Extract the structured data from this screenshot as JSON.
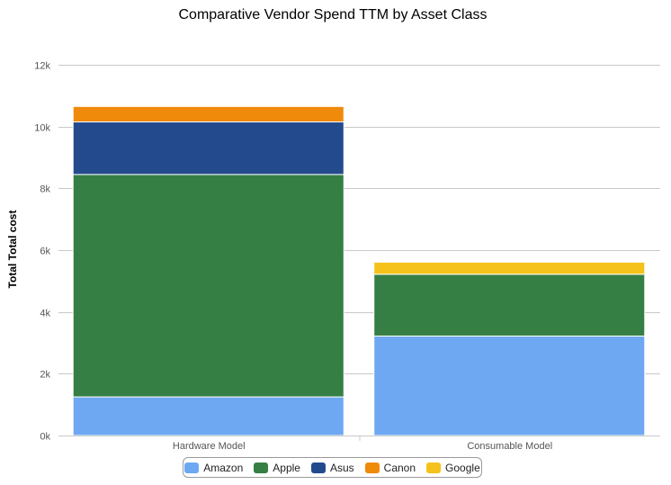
{
  "chart_data": {
    "type": "bar",
    "stacked": true,
    "title": "Comparative Vendor Spend TTM by Asset Class",
    "xlabel": "",
    "ylabel": "Total Total cost",
    "ylim": [
      0,
      12000
    ],
    "yticks": [
      0,
      2000,
      4000,
      6000,
      8000,
      10000,
      12000
    ],
    "ytick_labels": [
      "0k",
      "2k",
      "4k",
      "6k",
      "8k",
      "10k",
      "12k"
    ],
    "grid": true,
    "legend": "bottom-center",
    "categories": [
      "Hardware Model",
      "Consumable Model"
    ],
    "series": [
      {
        "name": "Amazon",
        "color": "#6ea8f2",
        "values": [
          1250,
          3220
        ]
      },
      {
        "name": "Apple",
        "color": "#357f45",
        "values": [
          7200,
          2000
        ]
      },
      {
        "name": "Asus",
        "color": "#244a8e",
        "values": [
          1700,
          0
        ]
      },
      {
        "name": "Canon",
        "color": "#f08a0b",
        "values": [
          500,
          0
        ]
      },
      {
        "name": "Google",
        "color": "#f4c21a",
        "values": [
          0,
          390
        ]
      }
    ]
  }
}
